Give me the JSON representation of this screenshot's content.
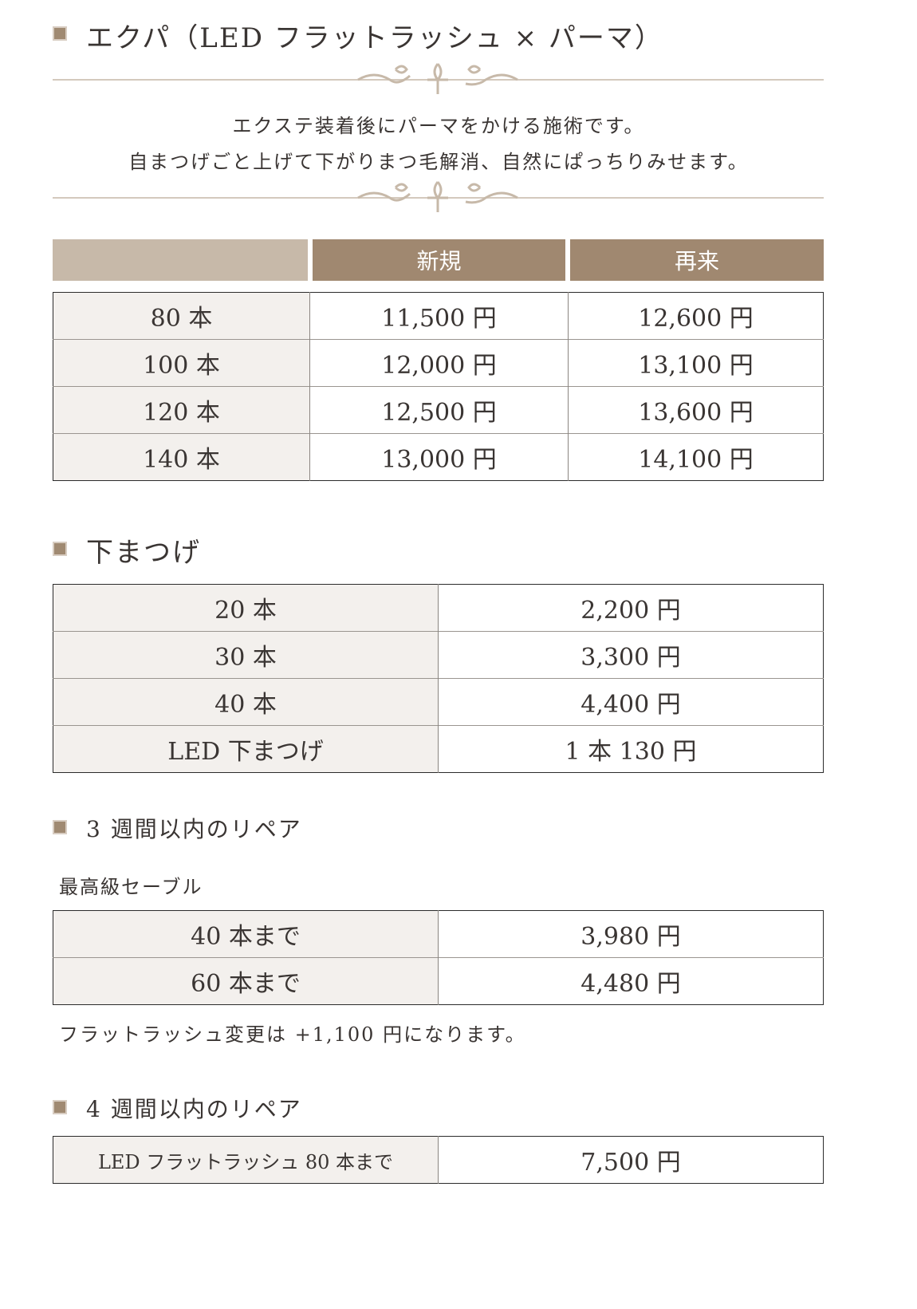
{
  "section1": {
    "title": "エクパ（LED フラットラッシュ × パーマ）",
    "description": [
      "エクステ装着後にパーマをかける施術です。",
      "自まつげごと上げて下がりまつ毛解消、自然にぱっちりみせます。"
    ],
    "headers": [
      "",
      "新規",
      "再来"
    ],
    "rows": [
      [
        "80 本",
        "11,500 円",
        "12,600 円"
      ],
      [
        "100 本",
        "12,000 円",
        "13,100 円"
      ],
      [
        "120 本",
        "12,500 円",
        "13,600 円"
      ],
      [
        "140 本",
        "13,000 円",
        "14,100 円"
      ]
    ]
  },
  "section2": {
    "title": "下まつげ",
    "rows": [
      [
        "20 本",
        "2,200 円"
      ],
      [
        "30 本",
        "3,300 円"
      ],
      [
        "40 本",
        "4,400 円"
      ],
      [
        "LED 下まつげ",
        "1 本 130 円"
      ]
    ]
  },
  "section3": {
    "title": "3 週間以内のリペア",
    "subtitle": "最高級セーブル",
    "rows": [
      [
        "40 本まで",
        "3,980 円"
      ],
      [
        "60 本まで",
        "4,480 円"
      ]
    ],
    "note": "フラットラッシュ変更は +1,100 円になります。"
  },
  "section4": {
    "title": "4 週間以内のリペア",
    "rows": [
      [
        "LED フラットラッシュ 80 本まで",
        "7,500 円"
      ]
    ]
  },
  "colors": {
    "header_light": "#c7b9a9",
    "header_dark": "#a08870",
    "cell_label": "#f3f0ed",
    "accent": "#a08a72"
  }
}
